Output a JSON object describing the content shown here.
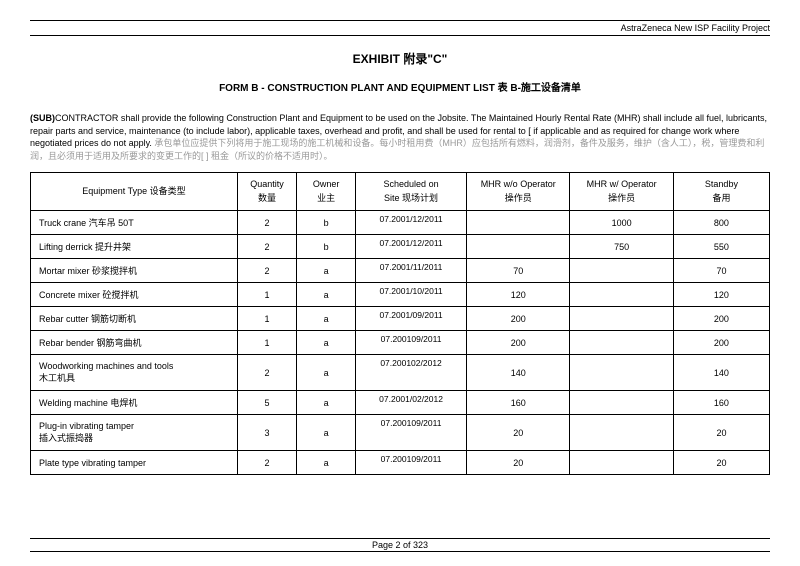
{
  "header": {
    "project": "AstraZeneca New ISP Facility Project"
  },
  "title": "EXHIBIT  附录\"C\"",
  "subtitle": "FORM B - CONSTRUCTION PLANT AND EQUIPMENT LIST  表 B-施工设备清单",
  "paragraph": {
    "en1": "(SUB)",
    "en2": "CONTRACTOR shall provide the following Construction Plant and Equipment to be used on the Jobsite.    The Maintained Hourly Rental Rate (MHR) shall include all fuel, lubricants, repair parts and service, maintenance (to include labor), applicable taxes, overhead and profit, and shall be used for rental to [ if applicable and as required for change work where negotiated prices do not apply. ",
    "cn1": "承包单位应提供下列将用于施工现场的施工机械和设备。每小时租用费（MHR）应包括所有燃料，润滑剂，备件及服务，维护（含人工），税，管理费和利润，且必须用于适用及所要求的变更工作的[                                      ] 租金（所议的价格不适用时）。"
  },
  "columns": {
    "c0": {
      "en": "Equipment Type 设备类型",
      "cn": ""
    },
    "c1": {
      "en": "Quantity",
      "cn": "数量"
    },
    "c2": {
      "en": "Owner",
      "cn": "业主"
    },
    "c3": {
      "en": "Scheduled on",
      "cn": "Site 现场计划"
    },
    "c4": {
      "en": "MHR w/o Operator",
      "cn": "操作员"
    },
    "c5": {
      "en": "MHR w/ Operator",
      "cn": "操作员"
    },
    "c6": {
      "en": "Standby",
      "cn": "备用"
    }
  },
  "rows": [
    {
      "name": "Truck crane 汽车吊 50T",
      "qty": "2",
      "owner": "b",
      "date": "07.2001/12/2011",
      "wo": "",
      "w": "1000",
      "sb": "800",
      "tall": false
    },
    {
      "name": "Lifting derrick  提升井架",
      "qty": "2",
      "owner": "b",
      "date": "07.2001/12/2011",
      "wo": "",
      "w": "750",
      "sb": "550",
      "tall": false
    },
    {
      "name": "Mortar mixer 砂浆搅拌机",
      "qty": "2",
      "owner": "a",
      "date": "07.2001/11/2011",
      "wo": "70",
      "w": "",
      "sb": "70",
      "tall": false
    },
    {
      "name": "Concrete mixer 砼搅拌机",
      "qty": "1",
      "owner": "a",
      "date": "07.2001/10/2011",
      "wo": "120",
      "w": "",
      "sb": "120",
      "tall": false
    },
    {
      "name": "Rebar cutter 钢筋切断机",
      "qty": "1",
      "owner": "a",
      "date": "07.2001/09/2011",
      "wo": "200",
      "w": "",
      "sb": "200",
      "tall": false
    },
    {
      "name": "Rebar bender 钢筋弯曲机",
      "qty": "1",
      "owner": "a",
      "date": "07.200109/2011",
      "wo": "200",
      "w": "",
      "sb": "200",
      "tall": false
    },
    {
      "name": "Woodworking machines and tools\n木工机具",
      "qty": "2",
      "owner": "a",
      "date": "07.200102/2012",
      "wo": "140",
      "w": "",
      "sb": "140",
      "tall": true
    },
    {
      "name": "Welding machine  电焊机",
      "qty": "5",
      "owner": "a",
      "date": "07.2001/02/2012",
      "wo": "160",
      "w": "",
      "sb": "160",
      "tall": false
    },
    {
      "name": "Plug-in vibrating tamper\n插入式振捣器",
      "qty": "3",
      "owner": "a",
      "date": "07.200109/2011",
      "wo": "20",
      "w": "",
      "sb": "20",
      "tall": true
    },
    {
      "name": "Plate type vibrating tamper",
      "qty": "2",
      "owner": "a",
      "date": "07.200109/2011",
      "wo": "20",
      "w": "",
      "sb": "20",
      "tall": false
    }
  ],
  "footer": "Page 2 of 323",
  "col_widths": [
    "28%",
    "8%",
    "8%",
    "15%",
    "14%",
    "14%",
    "13%"
  ]
}
